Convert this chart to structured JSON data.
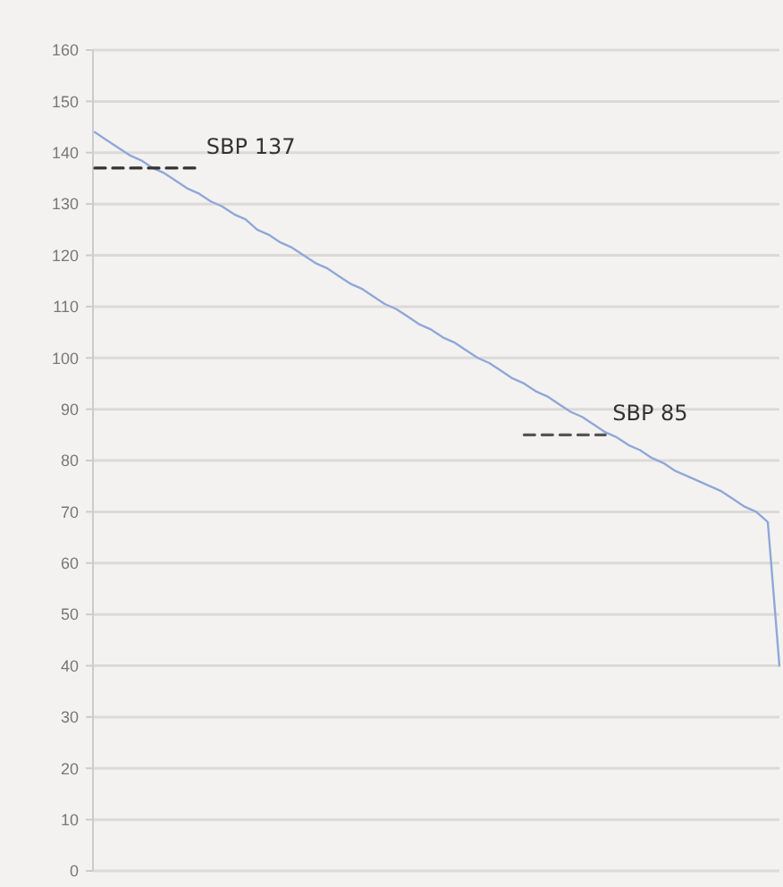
{
  "chart_data": {
    "type": "line",
    "categories": [
      null,
      null,
      null,
      null,
      null,
      null,
      null,
      null,
      null,
      null,
      null,
      null,
      null,
      null,
      null,
      null,
      null,
      null,
      null,
      null,
      null,
      null,
      null,
      null,
      null,
      null,
      null,
      null,
      null,
      null,
      null,
      null,
      null,
      null,
      null,
      null,
      null,
      null,
      null,
      null,
      null,
      null,
      null,
      null,
      null,
      null,
      null,
      null,
      null,
      null,
      null,
      null,
      null,
      null,
      null,
      null,
      null,
      null,
      null,
      null
    ],
    "ylim": [
      0,
      160
    ],
    "yticks": [
      0,
      10,
      20,
      30,
      40,
      50,
      60,
      70,
      80,
      90,
      100,
      110,
      120,
      130,
      140,
      150,
      160
    ],
    "grid": "y",
    "tick_labels": "y",
    "series": [
      {
        "color": "#8fa8d8",
        "values": [
          144,
          142.5,
          141,
          139.5,
          138.5,
          137,
          136,
          134.5,
          133,
          132,
          130.5,
          129.5,
          128,
          127,
          125,
          124,
          122.5,
          121.5,
          120,
          118.5,
          117.5,
          116,
          114.5,
          113.5,
          112,
          110.5,
          109.5,
          108,
          106.5,
          105.5,
          104,
          103,
          101.5,
          100,
          99,
          97.5,
          96,
          95,
          93.5,
          92.5,
          91,
          89.5,
          88.5,
          87,
          85.5,
          84.5,
          83,
          82,
          80.5,
          79.5,
          78,
          77,
          76,
          75,
          74,
          72.5,
          71,
          70,
          68,
          40
        ]
      },
      {
        "name": "SBP 137",
        "color": "#333333",
        "line_style": "dashed",
        "values": [
          137,
          137,
          137,
          137,
          137,
          137,
          137,
          137,
          137,
          137,
          null,
          null,
          null,
          null,
          null,
          null,
          null,
          null,
          null,
          null,
          null,
          null,
          null,
          null,
          null,
          null,
          null,
          null,
          null,
          null,
          null,
          null,
          null,
          null,
          null,
          null,
          null,
          null,
          null,
          null,
          null,
          null,
          null,
          null,
          null,
          null,
          null,
          null,
          null,
          null,
          null,
          null,
          null,
          null,
          null,
          null,
          null,
          null,
          null,
          null
        ]
      },
      {
        "name": "SBP 85",
        "color": "#555555",
        "line_style": "dashed",
        "values": [
          null,
          null,
          null,
          null,
          null,
          null,
          null,
          null,
          null,
          null,
          null,
          null,
          null,
          null,
          null,
          null,
          null,
          null,
          null,
          null,
          null,
          null,
          null,
          null,
          null,
          null,
          null,
          null,
          null,
          null,
          null,
          null,
          null,
          null,
          null,
          null,
          null,
          85,
          85,
          85,
          85,
          85,
          85,
          85,
          85,
          null,
          null,
          null,
          null,
          null,
          null,
          null,
          null,
          null,
          null,
          null,
          null,
          null,
          null,
          null
        ]
      }
    ]
  }
}
